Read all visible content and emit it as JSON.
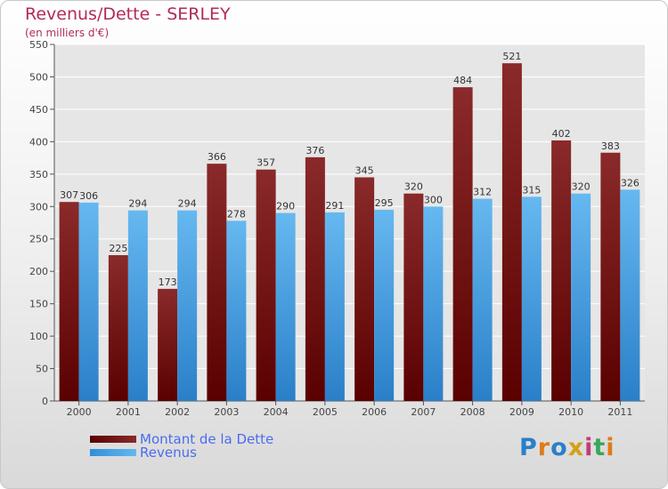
{
  "title": "Revenus/Dette - SERLEY",
  "subtitle": "(en milliers d'€)",
  "logo_text": "Proxiti",
  "colors": {
    "title": "#b22a5c",
    "debt_dark": "#5a0000",
    "debt_light": "#8a2a2a",
    "revenue_dark": "#2a7fc8",
    "revenue_light": "#66b8f0",
    "legend_text": "#4b6cf0"
  },
  "chart_data": {
    "type": "bar",
    "title": "Revenus/Dette - SERLEY",
    "subtitle": "(en milliers d'€)",
    "categories": [
      "2000",
      "2001",
      "2002",
      "2003",
      "2004",
      "2005",
      "2006",
      "2007",
      "2008",
      "2009",
      "2010",
      "2011"
    ],
    "series": [
      {
        "name": "Montant de la Dette",
        "values": [
          307,
          225,
          173,
          366,
          357,
          376,
          345,
          320,
          484,
          521,
          402,
          383
        ]
      },
      {
        "name": "Revenus",
        "values": [
          306,
          294,
          294,
          278,
          290,
          291,
          295,
          300,
          312,
          315,
          320,
          326
        ]
      }
    ],
    "ylim": [
      0,
      550
    ],
    "yticks": [
      0,
      50,
      100,
      150,
      200,
      250,
      300,
      350,
      400,
      450,
      500,
      550
    ],
    "grid": true,
    "legend_position": "bottom-left"
  }
}
